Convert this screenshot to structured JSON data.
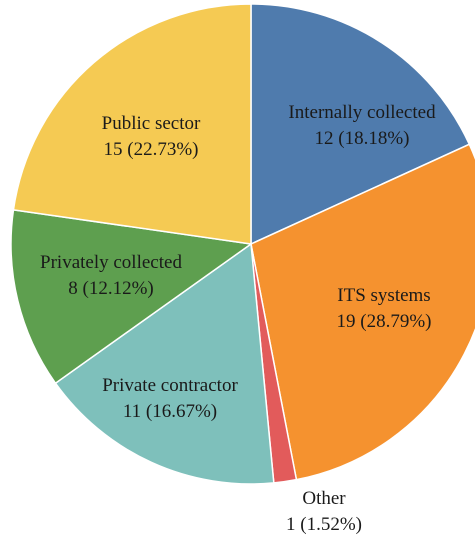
{
  "chart_data": {
    "type": "pie",
    "title": "",
    "slices": [
      {
        "label": "Internally collected",
        "value": 12,
        "percent_text": "12 (18.18%)",
        "color": "#4f7bad"
      },
      {
        "label": "ITS systems",
        "value": 19,
        "percent_text": "19 (28.79%)",
        "color": "#f5922f"
      },
      {
        "label": "Other",
        "value": 1,
        "percent_text": "1 (1.52%)",
        "color": "#e25b5b"
      },
      {
        "label": "Private contractor",
        "value": 11,
        "percent_text": "11 (16.67%)",
        "color": "#7ec0bb"
      },
      {
        "label": "Privately collected",
        "value": 8,
        "percent_text": "8 (12.12%)",
        "color": "#5e9f4f"
      },
      {
        "label": "Public sector",
        "value": 15,
        "percent_text": "15 (22.73%)",
        "color": "#f5ca53"
      }
    ]
  }
}
